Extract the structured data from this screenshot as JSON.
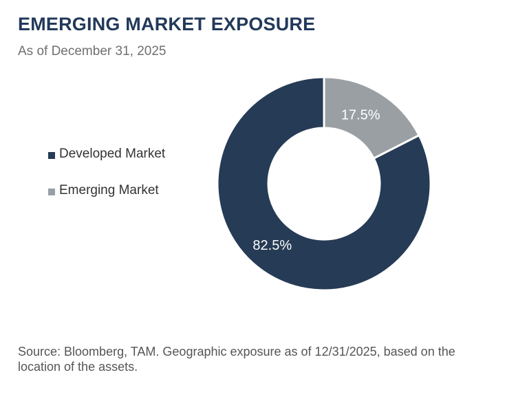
{
  "header": {
    "title": "EMERGING MARKET EXPOSURE",
    "subtitle": "As of December 31, 2025"
  },
  "chart_data": {
    "type": "pie",
    "title": "EMERGING MARKET EXPOSURE",
    "subtitle": "As of December 31, 2025",
    "donut": true,
    "legend_position": "left",
    "slices": [
      {
        "label": "Developed Market",
        "value": 82.5,
        "value_label": "82.5%",
        "color": "#263b55"
      },
      {
        "label": "Emerging Market",
        "value": 17.5,
        "value_label": "17.5%",
        "color": "#9a9fa4"
      }
    ]
  },
  "footer": {
    "source": "Source: Bloomberg, TAM. Geographic exposure as of 12/31/2025, based on the location of the assets."
  }
}
